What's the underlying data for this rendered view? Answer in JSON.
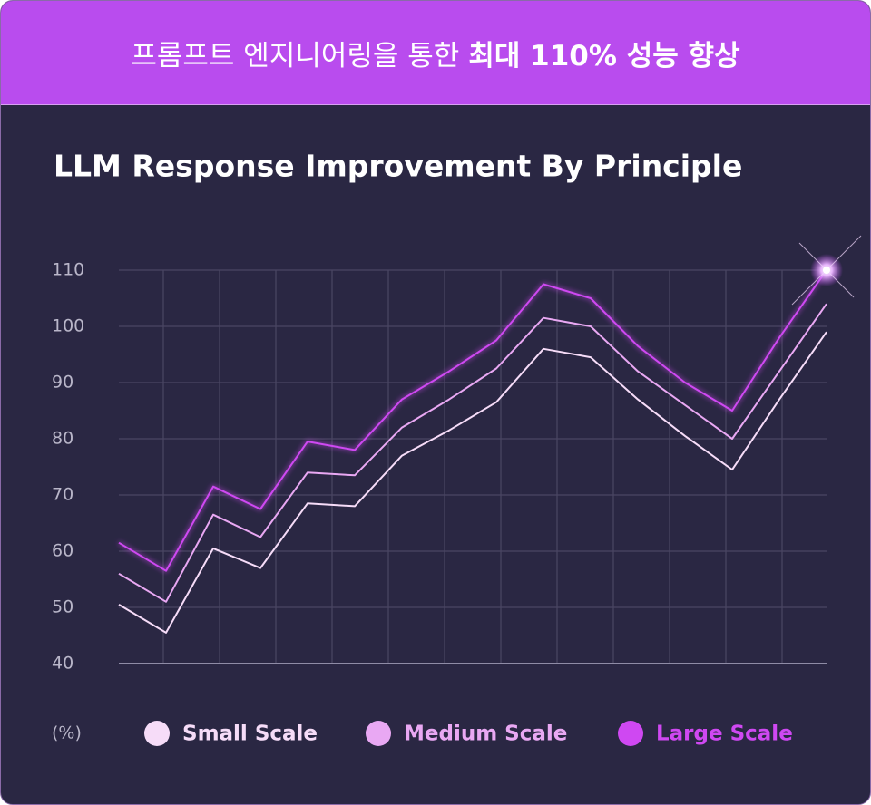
{
  "banner": {
    "text_regular": "프롬프트 엔지니어링을 통한",
    "text_bold": "최대 110% 성능 향상"
  },
  "chart_data": {
    "type": "line",
    "title": "LLM Response Improvement By Principle",
    "y_unit": "(%)",
    "categories": [
      null,
      null,
      null,
      null,
      null,
      null,
      null,
      null,
      null,
      null,
      null,
      null,
      null,
      null,
      null,
      null
    ],
    "series": [
      {
        "name": "Small Scale",
        "color": "#f6dcf8",
        "values": [
          50.5,
          45.5,
          60.5,
          57,
          68.5,
          68,
          77,
          81.5,
          86.5,
          96,
          94.5,
          87,
          80.5,
          74.5,
          87,
          99
        ]
      },
      {
        "name": "Medium Scale",
        "color": "#e9a8f3",
        "values": [
          56,
          51,
          66.5,
          62.5,
          74,
          73.5,
          82,
          87,
          92.5,
          101.5,
          100,
          92,
          86,
          80,
          92,
          104
        ]
      },
      {
        "name": "Large Scale",
        "color": "#cf48f2",
        "values": [
          61.5,
          56.5,
          71.5,
          67.5,
          79.5,
          78,
          87,
          92,
          97.5,
          107.5,
          105,
          96.5,
          90,
          85,
          98,
          110
        ]
      }
    ],
    "ylim": [
      40,
      110
    ],
    "yticks": [
      40,
      50,
      60,
      70,
      80,
      90,
      100,
      110
    ],
    "grid": true
  }
}
